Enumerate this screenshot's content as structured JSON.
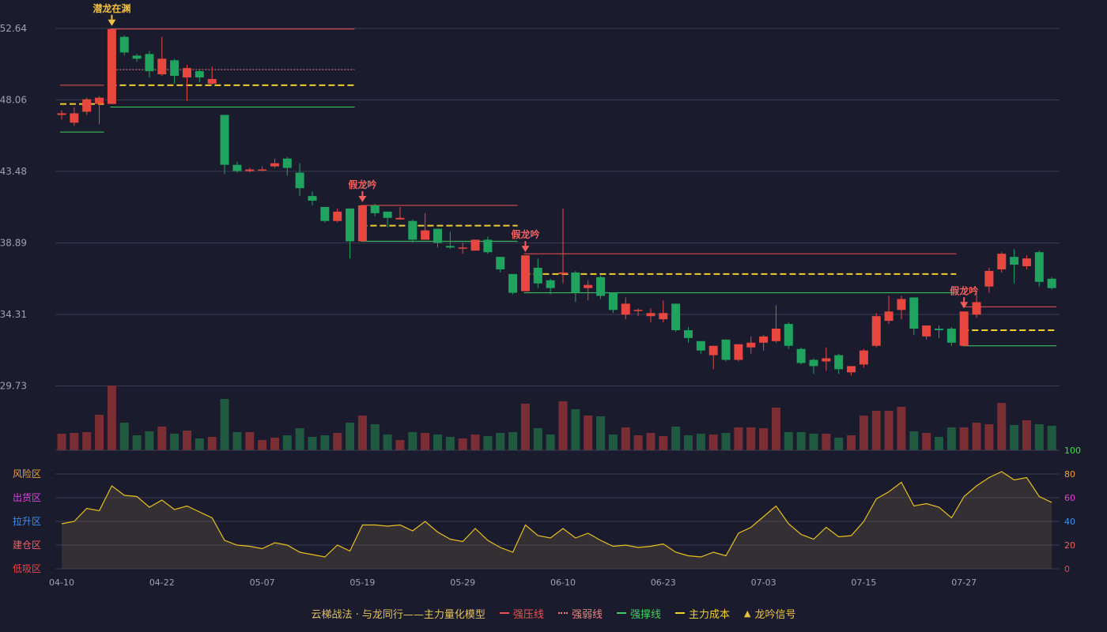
{
  "chart_data": {
    "type": "candlestick",
    "title": "",
    "price_axis": {
      "ticks": [
        "52.64",
        "48.06",
        "43.48",
        "38.89",
        "34.31",
        "29.73"
      ],
      "ylim": [
        29.73,
        52.64
      ]
    },
    "oscillator_axis": {
      "ticks": [
        "100",
        "80",
        "60",
        "40",
        "20",
        "0"
      ],
      "ylim": [
        0,
        100
      ]
    },
    "zones": [
      {
        "label": "风险区",
        "level": 80,
        "color": "#f0a030"
      },
      {
        "label": "出货区",
        "level": 60,
        "color": "#e040e0"
      },
      {
        "label": "拉升区",
        "level": 40,
        "color": "#4090f0"
      },
      {
        "label": "建仓区",
        "level": 20,
        "color": "#f06060"
      },
      {
        "label": "低吸区",
        "level": 0,
        "color": "#f04040"
      }
    ],
    "x_ticks": [
      {
        "index": 0,
        "label": "04-10"
      },
      {
        "index": 8,
        "label": "04-22"
      },
      {
        "index": 16,
        "label": "05-07"
      },
      {
        "index": 24,
        "label": "05-19"
      },
      {
        "index": 32,
        "label": "05-29"
      },
      {
        "index": 40,
        "label": "06-10"
      },
      {
        "index": 48,
        "label": "06-23"
      },
      {
        "index": 56,
        "label": "07-03"
      },
      {
        "index": 64,
        "label": "07-15"
      },
      {
        "index": 72,
        "label": "07-27"
      }
    ],
    "candles": [
      [
        47.1,
        47.2,
        46.8,
        47.4
      ],
      [
        46.6,
        47.2,
        46.4,
        47.6
      ],
      [
        47.3,
        48.1,
        47.1,
        48.2
      ],
      [
        47.8,
        48.2,
        46.5,
        48.3
      ],
      [
        47.8,
        52.6,
        47.8,
        52.6
      ],
      [
        52.1,
        51.1,
        50.9,
        52.2
      ],
      [
        50.9,
        50.7,
        50.5,
        51.0
      ],
      [
        51.0,
        49.9,
        49.5,
        51.2
      ],
      [
        49.7,
        50.7,
        49.6,
        52.1
      ],
      [
        50.6,
        49.6,
        49.1,
        50.7
      ],
      [
        49.5,
        50.1,
        48.0,
        50.3
      ],
      [
        49.9,
        49.5,
        49.2,
        50.0
      ],
      [
        49.1,
        49.4,
        49.0,
        50.2
      ],
      [
        47.1,
        43.9,
        43.3,
        47.1
      ],
      [
        43.9,
        43.5,
        43.4,
        44.1
      ],
      [
        43.5,
        43.6,
        43.4,
        43.7
      ],
      [
        43.6,
        43.6,
        43.5,
        43.8
      ],
      [
        43.8,
        44.0,
        43.7,
        44.3
      ],
      [
        44.3,
        43.7,
        43.2,
        44.4
      ],
      [
        43.4,
        42.4,
        41.9,
        44.0
      ],
      [
        41.9,
        41.6,
        41.3,
        42.2
      ],
      [
        41.2,
        40.3,
        40.2,
        41.2
      ],
      [
        40.3,
        40.9,
        40.2,
        41.1
      ],
      [
        41.1,
        39.0,
        37.9,
        41.1
      ],
      [
        39.0,
        41.3,
        39.0,
        41.3
      ],
      [
        41.3,
        40.8,
        40.6,
        41.4
      ],
      [
        40.9,
        40.5,
        39.9,
        40.9
      ],
      [
        40.4,
        40.5,
        40.4,
        41.2
      ],
      [
        40.3,
        39.1,
        38.9,
        40.4
      ],
      [
        39.1,
        39.7,
        39.1,
        40.8
      ],
      [
        39.8,
        38.9,
        38.6,
        39.8
      ],
      [
        38.7,
        38.6,
        38.5,
        39.6
      ],
      [
        38.6,
        38.6,
        38.2,
        38.9
      ],
      [
        38.4,
        39.1,
        38.4,
        39.1
      ],
      [
        39.1,
        38.3,
        38.2,
        39.3
      ],
      [
        38.0,
        37.2,
        37.0,
        38.0
      ],
      [
        36.9,
        35.7,
        35.6,
        36.9
      ],
      [
        35.8,
        38.1,
        35.8,
        38.1
      ],
      [
        37.3,
        36.3,
        36.0,
        37.9
      ],
      [
        36.5,
        36.0,
        35.6,
        36.6
      ],
      [
        36.9,
        37.0,
        36.3,
        41.1
      ],
      [
        37.0,
        35.7,
        35.1,
        37.1
      ],
      [
        36.0,
        36.2,
        35.2,
        36.5
      ],
      [
        36.7,
        35.5,
        35.3,
        36.8
      ],
      [
        35.7,
        34.6,
        34.4,
        35.7
      ],
      [
        34.3,
        35.0,
        34.0,
        35.4
      ],
      [
        34.6,
        34.6,
        34.2,
        34.7
      ],
      [
        34.2,
        34.4,
        33.8,
        34.7
      ],
      [
        34.0,
        34.4,
        33.8,
        35.2
      ],
      [
        35.0,
        33.3,
        33.2,
        35.0
      ],
      [
        33.3,
        32.8,
        32.5,
        33.5
      ],
      [
        32.6,
        32.0,
        31.8,
        32.6
      ],
      [
        31.7,
        32.3,
        30.8,
        32.3
      ],
      [
        32.7,
        31.4,
        31.3,
        32.7
      ],
      [
        31.4,
        32.4,
        31.3,
        32.4
      ],
      [
        32.2,
        32.5,
        31.8,
        32.9
      ],
      [
        32.5,
        32.9,
        32.0,
        33.0
      ],
      [
        32.6,
        33.4,
        32.5,
        34.9
      ],
      [
        33.7,
        32.3,
        32.1,
        33.8
      ],
      [
        32.1,
        31.2,
        31.1,
        32.2
      ],
      [
        31.4,
        31.0,
        30.5,
        31.5
      ],
      [
        31.3,
        31.5,
        30.7,
        32.2
      ],
      [
        31.7,
        30.8,
        30.5,
        31.8
      ],
      [
        30.6,
        31.0,
        30.4,
        31.0
      ],
      [
        31.1,
        32.0,
        30.9,
        32.1
      ],
      [
        32.3,
        34.2,
        32.2,
        34.4
      ],
      [
        33.9,
        34.5,
        33.7,
        35.5
      ],
      [
        34.6,
        35.3,
        34.0,
        35.5
      ],
      [
        35.4,
        33.4,
        33.0,
        35.4
      ],
      [
        32.9,
        33.6,
        32.7,
        33.6
      ],
      [
        33.4,
        33.3,
        32.8,
        33.6
      ],
      [
        33.4,
        32.5,
        32.3,
        33.5
      ],
      [
        32.3,
        34.5,
        32.3,
        34.5
      ],
      [
        34.3,
        35.1,
        34.1,
        35.7
      ],
      [
        36.1,
        37.1,
        35.7,
        37.3
      ],
      [
        37.2,
        38.2,
        37.0,
        38.3
      ],
      [
        38.0,
        37.5,
        36.3,
        38.5
      ],
      [
        37.4,
        37.9,
        37.2,
        38.1
      ],
      [
        38.3,
        36.4,
        36.1,
        38.4
      ],
      [
        36.6,
        36.0,
        35.9,
        36.7
      ]
    ],
    "volumes": [
      21,
      22,
      23,
      45,
      82,
      35,
      19,
      24,
      30,
      21,
      25,
      15,
      17,
      65,
      23,
      23,
      13,
      16,
      19,
      28,
      17,
      19,
      22,
      35,
      44,
      33,
      20,
      13,
      23,
      22,
      20,
      17,
      15,
      20,
      18,
      22,
      23,
      59,
      28,
      20,
      62,
      52,
      44,
      43,
      20,
      29,
      19,
      22,
      18,
      30,
      19,
      21,
      20,
      22,
      29,
      29,
      28,
      54,
      23,
      23,
      21,
      21,
      16,
      19,
      44,
      50,
      50,
      55,
      24,
      22,
      17,
      29,
      29,
      35,
      33,
      60,
      32,
      38,
      33,
      31
    ],
    "oscillator": [
      38,
      40,
      51,
      49,
      70,
      62,
      61,
      52,
      58,
      50,
      53,
      48,
      43,
      24,
      20,
      19,
      17,
      22,
      20,
      14,
      12,
      10,
      20,
      15,
      37,
      37,
      36,
      37,
      32,
      40,
      31,
      25,
      23,
      34,
      24,
      18,
      14,
      37,
      28,
      26,
      34,
      26,
      30,
      24,
      19,
      20,
      18,
      19,
      21,
      14,
      11,
      10,
      14,
      11,
      30,
      35,
      44,
      53,
      38,
      29,
      25,
      35,
      27,
      28,
      40,
      59,
      65,
      73,
      53,
      55,
      52,
      43,
      61,
      70,
      77,
      82,
      75,
      77,
      61,
      56
    ],
    "signals": [
      {
        "index": 4,
        "label": "潜龙在渊",
        "color": "#f0c040"
      },
      {
        "index": 24,
        "label": "假龙吟",
        "color": "#f06060"
      },
      {
        "index": 37,
        "label": "假龙吟",
        "color": "#f06060"
      },
      {
        "index": 72,
        "label": "假龙吟",
        "color": "#f06060"
      }
    ],
    "level_lines": [
      {
        "type": "strong_pressure",
        "start": 0,
        "end": 3,
        "value": 49.0
      },
      {
        "type": "main_cost",
        "start": 0,
        "end": 3,
        "value": 47.8
      },
      {
        "type": "strong_support",
        "start": 0,
        "end": 3,
        "value": 46.0
      },
      {
        "type": "strong_pressure",
        "start": 4,
        "end": 23,
        "value": 52.6
      },
      {
        "type": "weak",
        "start": 4,
        "end": 23,
        "value": 50.0
      },
      {
        "type": "main_cost",
        "start": 4,
        "end": 23,
        "value": 49.0
      },
      {
        "type": "strong_support",
        "start": 4,
        "end": 23,
        "value": 47.6
      },
      {
        "type": "strong_pressure",
        "start": 24,
        "end": 36,
        "value": 41.3
      },
      {
        "type": "main_cost",
        "start": 24,
        "end": 36,
        "value": 40.0
      },
      {
        "type": "strong_support",
        "start": 24,
        "end": 36,
        "value": 39.0
      },
      {
        "type": "strong_pressure",
        "start": 37,
        "end": 71,
        "value": 38.2
      },
      {
        "type": "main_cost",
        "start": 37,
        "end": 71,
        "value": 36.9
      },
      {
        "type": "strong_support",
        "start": 37,
        "end": 71,
        "value": 35.7
      },
      {
        "type": "strong_pressure",
        "start": 72,
        "end": 79,
        "value": 34.8
      },
      {
        "type": "main_cost",
        "start": 72,
        "end": 79,
        "value": 33.3
      },
      {
        "type": "strong_support",
        "start": 72,
        "end": 79,
        "value": 32.3
      }
    ],
    "colors": {
      "up": "#e8473f",
      "down": "#1fa35f",
      "strong_pressure": "#f05050",
      "weak": "#f08080",
      "strong_support": "#40d060",
      "main_cost": "#f0d030",
      "oscillator_line": "#e8c020",
      "background": "#1b1b2e"
    }
  },
  "legend": {
    "model_name": "云梯战法 · 与龙同行——主力量化模型",
    "items": [
      {
        "label": "强压线",
        "color": "#f05050",
        "style": "solid"
      },
      {
        "label": "强弱线",
        "color": "#f08080",
        "style": "dotted"
      },
      {
        "label": "强撑线",
        "color": "#40d060",
        "style": "solid"
      },
      {
        "label": "主力成本",
        "color": "#f0d030",
        "style": "dashed"
      },
      {
        "label": "龙吟信号",
        "color": "#f0c040",
        "style": "triangle"
      }
    ]
  }
}
